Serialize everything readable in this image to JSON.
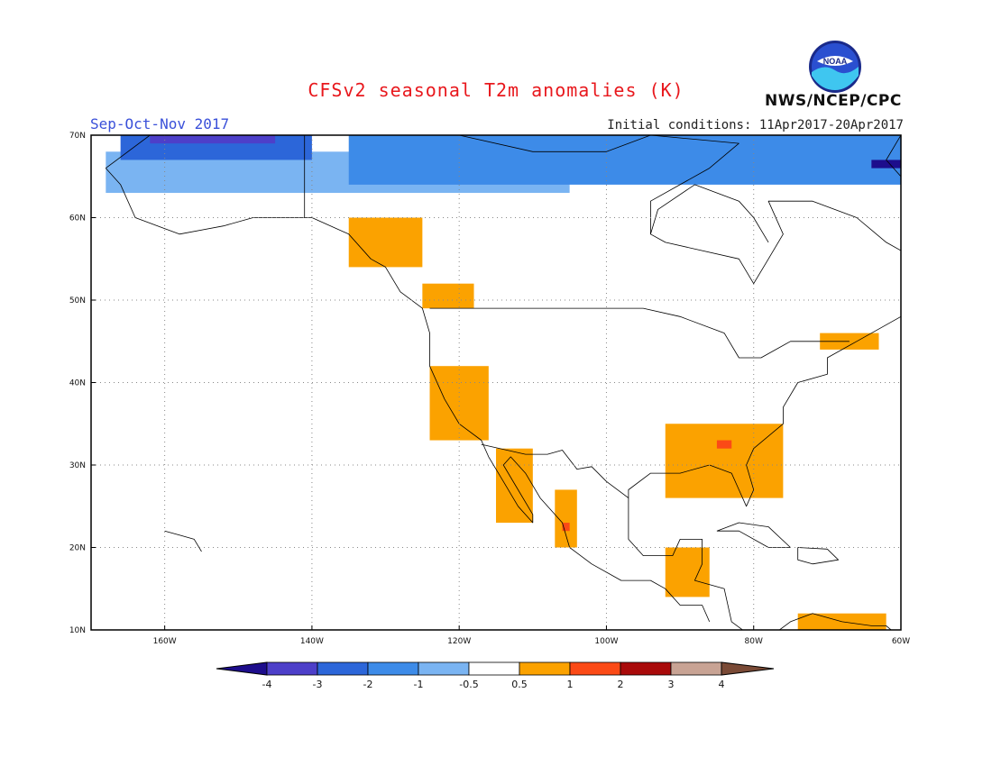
{
  "title": "CFSv2 seasonal T2m anomalies (K)",
  "period": "Sep-Oct-Nov 2017",
  "initial_conditions": "Initial conditions: 11Apr2017-20Apr2017",
  "agency": "NWS/NCEP/CPC",
  "logo_text": "NOAA",
  "colors": {
    "title": "#e8181d",
    "period": "#3a50d9",
    "frame": "#000000",
    "coast": "#000000",
    "grid": "#888888"
  },
  "chart_data": {
    "type": "heatmap",
    "region": {
      "lon_range": [
        -170,
        -60
      ],
      "lat_range": [
        10,
        70
      ]
    },
    "gridlines": "dotted",
    "lat_ticks": [
      "10N",
      "20N",
      "30N",
      "40N",
      "50N",
      "60N",
      "70N"
    ],
    "lon_ticks": [
      "160W",
      "140W",
      "120W",
      "100W",
      "80W",
      "60W"
    ],
    "colorbar": {
      "labels": [
        "-4",
        "-3",
        "-2",
        "-1",
        "-0.5",
        "0.5",
        "1",
        "2",
        "3",
        "4"
      ],
      "colors": [
        "#1d0d8c",
        "#4d3fc9",
        "#2c66d9",
        "#3d8be8",
        "#7ab4f2",
        "#ffffff",
        "#fba200",
        "#fb4a16",
        "#a90a0a",
        "#c8a394",
        "#7a4a36"
      ]
    },
    "anomaly_regions": [
      {
        "name": "Northern Alaska / Arctic coast",
        "category": "-0.5",
        "color": "#7ab4f2",
        "lon": [
          -168,
          -105
        ],
        "lat": [
          63,
          68
        ]
      },
      {
        "name": "Arctic Canada",
        "category": "-1",
        "color": "#3d8be8",
        "lon": [
          -135,
          -60
        ],
        "lat": [
          64,
          70
        ]
      },
      {
        "name": "Far north Alaska",
        "category": "-2",
        "color": "#2c66d9",
        "lon": [
          -166,
          -140
        ],
        "lat": [
          67,
          70
        ]
      },
      {
        "name": "Arctic Ocean north of Alaska",
        "category": "-3",
        "color": "#4d3fc9",
        "lon": [
          -162,
          -145
        ],
        "lat": [
          69,
          70
        ]
      },
      {
        "name": "Baffin region",
        "category": "-4",
        "color": "#1d0d8c",
        "lon": [
          -64,
          -60
        ],
        "lat": [
          66,
          67
        ]
      },
      {
        "name": "Western Canada / Alaska panhandle",
        "category": "1",
        "color": "#fba200",
        "lon": [
          -135,
          -125
        ],
        "lat": [
          54,
          60
        ]
      },
      {
        "name": "British Columbia interior",
        "category": "1",
        "color": "#fba200",
        "lon": [
          -125,
          -118
        ],
        "lat": [
          49,
          52
        ]
      },
      {
        "name": "US West Coast",
        "category": "1",
        "color": "#fba200",
        "lon": [
          -124,
          -116
        ],
        "lat": [
          33,
          42
        ]
      },
      {
        "name": "Baja California",
        "category": "1",
        "color": "#fba200",
        "lon": [
          -115,
          -110
        ],
        "lat": [
          23,
          32
        ]
      },
      {
        "name": "Western Mexico",
        "category": "1",
        "color": "#fba200",
        "lon": [
          -107,
          -104
        ],
        "lat": [
          20,
          27
        ]
      },
      {
        "name": "US Southeast",
        "category": "1",
        "color": "#fba200",
        "lon": [
          -92,
          -76
        ],
        "lat": [
          26,
          35
        ]
      },
      {
        "name": "Central America",
        "category": "1",
        "color": "#fba200",
        "lon": [
          -92,
          -86
        ],
        "lat": [
          14,
          20
        ]
      },
      {
        "name": "Caribbean north of South America",
        "category": "1",
        "color": "#fba200",
        "lon": [
          -74,
          -62
        ],
        "lat": [
          10,
          12
        ]
      },
      {
        "name": "Maine / Maritimes",
        "category": "1",
        "color": "#fba200",
        "lon": [
          -71,
          -63
        ],
        "lat": [
          44,
          46
        ]
      },
      {
        "name": "Georgia",
        "category": "2",
        "color": "#fb4a16",
        "lon": [
          -85,
          -83
        ],
        "lat": [
          32,
          33
        ]
      },
      {
        "name": "West Mexico coast",
        "category": "2",
        "color": "#fb4a16",
        "lon": [
          -106,
          -105
        ],
        "lat": [
          22,
          23
        ]
      }
    ]
  }
}
